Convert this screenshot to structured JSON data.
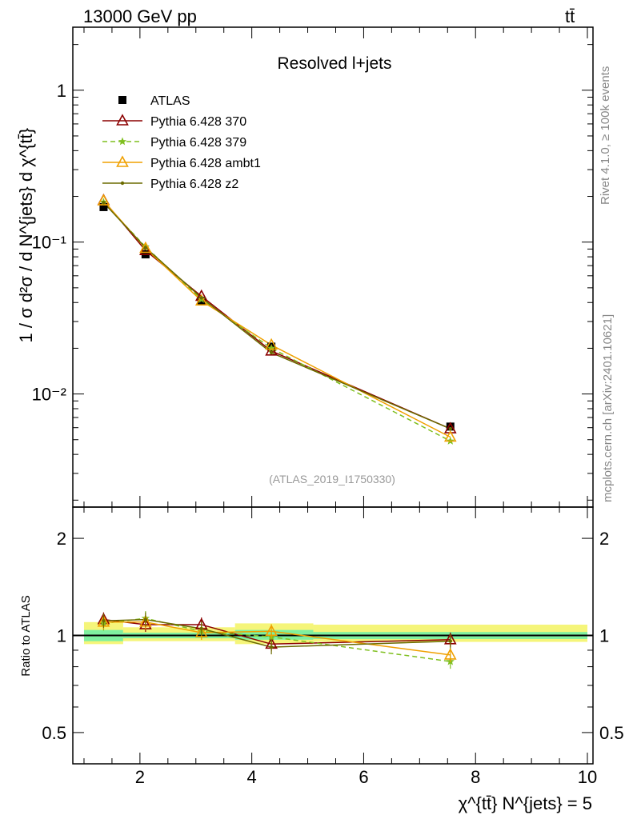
{
  "header": {
    "energy_label": "13000 GeV pp",
    "process_label": "tt̄"
  },
  "side_labels": {
    "rivet": "Rivet 4.1.0, ≥ 100k events",
    "mcplots": "mcplots.cern.ch [arXiv:2401.10621]"
  },
  "chart_data": [
    {
      "panel": "main",
      "type": "line",
      "title": "Resolved l+jets",
      "watermark": "(ATLAS_2019_I1750330)",
      "ylabel": "1 / σ d²σ / d N^{jets} d χ^{tt̄}",
      "yscale": "log",
      "ylim": [
        0.0018,
        2.6
      ],
      "xlim": [
        0.8,
        10.1
      ],
      "y_ticks": [
        {
          "value": 1,
          "label": "1"
        },
        {
          "value": 0.1,
          "label": "10⁻¹"
        },
        {
          "value": 0.01,
          "label": "10⁻²"
        }
      ],
      "x": [
        1.35,
        2.1,
        3.1,
        4.35,
        7.55
      ],
      "series": [
        {
          "name": "ATLAS",
          "color": "#000000",
          "marker": "square",
          "values": [
            0.17,
            0.083,
            0.041,
            0.0205,
            0.0061
          ]
        },
        {
          "name": "Pythia 6.428 370",
          "color": "#8b0000",
          "marker": "triangle",
          "dash": "",
          "values": [
            0.188,
            0.088,
            0.044,
            0.0192,
            0.0059
          ]
        },
        {
          "name": "Pythia 6.428 379",
          "color": "#7fbf1f",
          "marker": "star",
          "dash": "6,4",
          "values": [
            0.183,
            0.093,
            0.042,
            0.02,
            0.0049
          ]
        },
        {
          "name": "Pythia 6.428 ambt1",
          "color": "#f0a000",
          "marker": "triangle",
          "dash": "",
          "values": [
            0.187,
            0.091,
            0.041,
            0.021,
            0.0052
          ]
        },
        {
          "name": "Pythia 6.428 z2",
          "color": "#6b6b00",
          "marker": "dot",
          "dash": "",
          "values": [
            0.182,
            0.092,
            0.043,
            0.0187,
            0.0059
          ]
        }
      ]
    },
    {
      "panel": "ratio",
      "type": "line",
      "ylabel": "Ratio to ATLAS",
      "xlabel": "χ^{tt̄} N^{jets} = 5",
      "yscale": "log",
      "ylim": [
        0.4,
        2.5
      ],
      "xlim": [
        0.8,
        10.1
      ],
      "y_ticks": [
        {
          "value": 2,
          "label": "2"
        },
        {
          "value": 1,
          "label": "1"
        },
        {
          "value": 0.5,
          "label": "0.5"
        }
      ],
      "x_ticks": [
        {
          "value": 2,
          "label": "2"
        },
        {
          "value": 4,
          "label": "4"
        },
        {
          "value": 6,
          "label": "6"
        },
        {
          "value": 8,
          "label": "8"
        },
        {
          "value": 10,
          "label": "10"
        }
      ],
      "bins": [
        {
          "x0": 1.0,
          "x1": 1.7,
          "inner": [
            0.96,
            1.04
          ],
          "outer": [
            0.94,
            1.1
          ]
        },
        {
          "x0": 1.7,
          "x1": 3.7,
          "inner": [
            0.98,
            1.02
          ],
          "outer": [
            0.96,
            1.06
          ]
        },
        {
          "x0": 3.7,
          "x1": 5.1,
          "inner": [
            0.97,
            1.04
          ],
          "outer": [
            0.94,
            1.09
          ]
        },
        {
          "x0": 5.1,
          "x1": 10.0,
          "inner": [
            0.975,
            1.025
          ],
          "outer": [
            0.955,
            1.08
          ]
        }
      ],
      "x": [
        1.35,
        2.1,
        3.1,
        4.35,
        7.55
      ],
      "series": [
        {
          "name": "Pythia 6.428 370",
          "color": "#8b0000",
          "marker": "triangle",
          "dash": "",
          "values": [
            1.12,
            1.08,
            1.08,
            0.94,
            0.97
          ]
        },
        {
          "name": "Pythia 6.428 379",
          "color": "#7fbf1f",
          "marker": "star",
          "dash": "6,4",
          "values": [
            1.09,
            1.13,
            1.03,
            0.99,
            0.83
          ]
        },
        {
          "name": "Pythia 6.428 ambt1",
          "color": "#f0a000",
          "marker": "triangle",
          "dash": "",
          "values": [
            1.1,
            1.1,
            1.02,
            1.03,
            0.87
          ]
        },
        {
          "name": "Pythia 6.428 z2",
          "color": "#6b6b00",
          "marker": "dot",
          "dash": "",
          "values": [
            1.11,
            1.12,
            1.05,
            0.92,
            0.96
          ]
        }
      ]
    }
  ]
}
